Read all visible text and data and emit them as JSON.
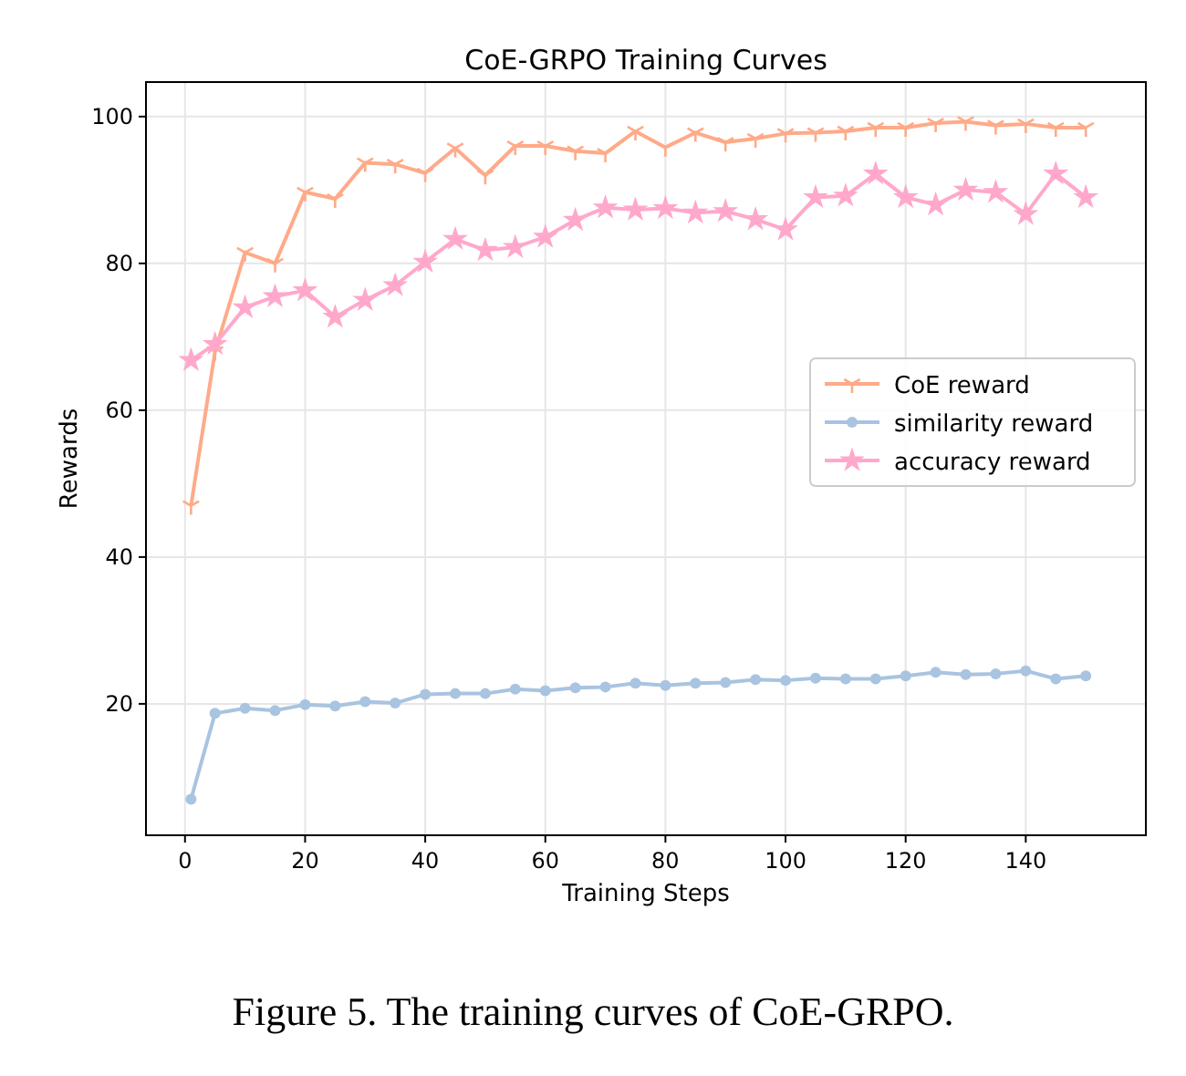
{
  "chart_data": {
    "type": "line",
    "title": "CoE-GRPO Training Curves",
    "xlabel": "Training Steps",
    "ylabel": "Rewards",
    "x": [
      1,
      5,
      10,
      15,
      20,
      25,
      30,
      35,
      40,
      45,
      50,
      55,
      60,
      65,
      70,
      75,
      80,
      85,
      90,
      95,
      100,
      105,
      110,
      115,
      120,
      125,
      130,
      135,
      140,
      145,
      150
    ],
    "series": [
      {
        "name": "CoE reward",
        "color": "#ffaa88",
        "marker": "cross",
        "values": [
          47,
          68,
          81.5,
          80,
          89.7,
          88.8,
          93.7,
          93.5,
          92.3,
          95.7,
          92,
          96,
          96,
          95.3,
          95,
          98,
          95.8,
          97.8,
          96.5,
          97,
          97.7,
          97.8,
          98,
          98.5,
          98.5,
          99.1,
          99.3,
          98.8,
          99,
          98.5,
          98.5
        ]
      },
      {
        "name": "similarity reward",
        "color": "#a8c4e0",
        "marker": "circle",
        "values": [
          7,
          18.7,
          19.4,
          19.1,
          19.9,
          19.7,
          20.3,
          20.1,
          21.3,
          21.4,
          21.4,
          22,
          21.8,
          22.2,
          22.3,
          22.8,
          22.5,
          22.8,
          22.9,
          23.3,
          23.2,
          23.5,
          23.4,
          23.4,
          23.8,
          24.3,
          24,
          24.1,
          24.5,
          23.4,
          23.8
        ]
      },
      {
        "name": "accuracy reward",
        "color": "#ffa8cc",
        "marker": "star",
        "values": [
          66.8,
          69,
          74,
          75.5,
          76.3,
          72.7,
          75,
          77,
          80.2,
          83.3,
          81.8,
          82.2,
          83.6,
          85.9,
          87.6,
          87.3,
          87.5,
          86.9,
          87.1,
          86,
          84.6,
          89,
          89.2,
          92.2,
          89,
          88,
          90,
          89.7,
          86.7,
          92.2,
          89
        ]
      }
    ],
    "xlim": [
      -6.5,
      160
    ],
    "xticks": [
      0,
      20,
      40,
      60,
      80,
      100,
      120,
      140
    ],
    "ylim": [
      2.1,
      104.7
    ],
    "yticks": [
      20,
      40,
      60,
      80,
      100
    ],
    "grid": true,
    "legend": "right",
    "line_style": "solid",
    "annotations": [
      "Figure 5. The training curves of CoE-GRPO."
    ]
  }
}
